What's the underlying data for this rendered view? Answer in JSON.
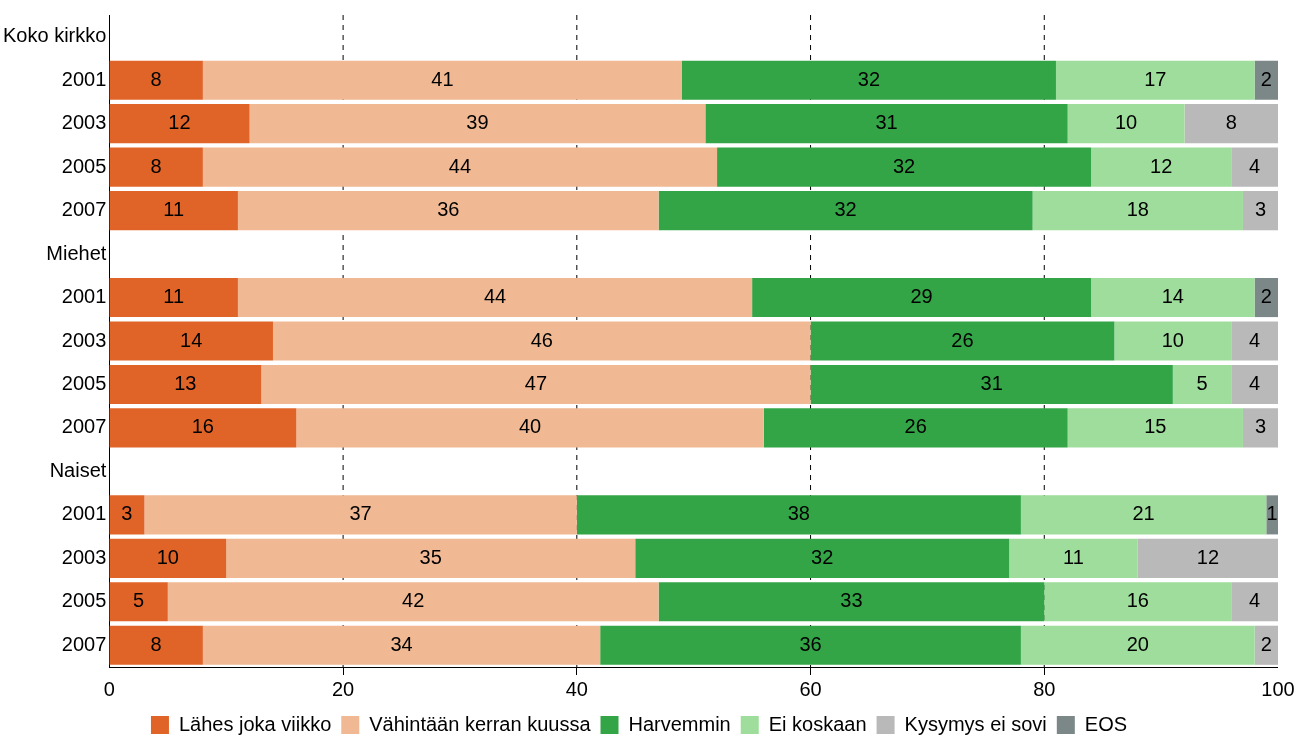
{
  "chart_data": {
    "type": "bar",
    "orientation": "horizontal",
    "stacked": true,
    "data_labels": true,
    "grid": "x",
    "legend": "bottom",
    "categories": [
      "Koko kirkko",
      "2001",
      "2003",
      "2005",
      "2007",
      "Miehet",
      "2001",
      "2003",
      "2005",
      "2007",
      "Naiset",
      "2001",
      "2003",
      "2005",
      "2007"
    ],
    "xlim": [
      0,
      100
    ],
    "xticks": [
      0,
      20,
      40,
      60,
      80,
      100
    ],
    "series": [
      {
        "name": "Lähes joka viikko",
        "color": "#e06428",
        "values": [
          null,
          8,
          12,
          8,
          11,
          null,
          11,
          14,
          13,
          16,
          null,
          3,
          10,
          5,
          8
        ]
      },
      {
        "name": "Vähintään kerran kuussa",
        "color": "#f0b994",
        "values": [
          null,
          41,
          39,
          44,
          36,
          null,
          44,
          46,
          47,
          40,
          null,
          37,
          35,
          42,
          34
        ]
      },
      {
        "name": "Harvemmin",
        "color": "#33a547",
        "values": [
          null,
          32,
          31,
          32,
          32,
          null,
          29,
          26,
          31,
          26,
          null,
          38,
          32,
          33,
          36
        ]
      },
      {
        "name": "Ei koskaan",
        "color": "#9edd9b",
        "values": [
          null,
          17,
          10,
          12,
          18,
          null,
          14,
          10,
          5,
          15,
          null,
          21,
          11,
          16,
          20
        ]
      },
      {
        "name": "Kysymys ei sovi",
        "color": "#b9b9b9",
        "values": [
          null,
          null,
          8,
          4,
          3,
          null,
          null,
          4,
          4,
          3,
          null,
          null,
          12,
          4,
          2
        ]
      },
      {
        "name": "EOS",
        "color": "#7c8787",
        "values": [
          null,
          2,
          null,
          null,
          null,
          null,
          2,
          null,
          null,
          null,
          null,
          1,
          null,
          null,
          null
        ]
      }
    ]
  }
}
